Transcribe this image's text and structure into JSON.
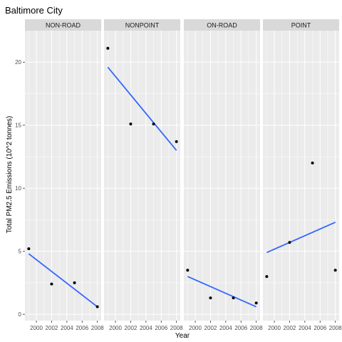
{
  "chart_data": {
    "type": "scatter",
    "title": "Baltimore City",
    "xlabel": "Year",
    "ylabel": "Total PM2.5 Emissions (10^2 tonnes)",
    "x_ticks": [
      2000,
      2002,
      2004,
      2006,
      2008
    ],
    "x_tick_labels": [
      "2000",
      "2002",
      "2004",
      "2006",
      "2008"
    ],
    "y_ticks": [
      0,
      5,
      10,
      15,
      20
    ],
    "y_tick_labels": [
      "0",
      "5",
      "10",
      "15",
      "20"
    ],
    "xlim": [
      1998.5,
      2008.5
    ],
    "ylim": [
      -0.5,
      22.5
    ],
    "grid": true,
    "trend_color": "#3366ff",
    "point_color": "#000000",
    "panel_bg": "#ebebeb",
    "strip_bg": "#d9d9d9",
    "facets": [
      {
        "name": "NON-ROAD",
        "points": [
          {
            "x": 1999,
            "y": 5.2
          },
          {
            "x": 2002,
            "y": 2.4
          },
          {
            "x": 2005,
            "y": 2.5
          },
          {
            "x": 2008,
            "y": 0.6
          }
        ],
        "trend": [
          {
            "x": 1999,
            "y": 4.8
          },
          {
            "x": 2008,
            "y": 0.6
          }
        ]
      },
      {
        "name": "NONPOINT",
        "points": [
          {
            "x": 1999,
            "y": 21.1
          },
          {
            "x": 2002,
            "y": 15.1
          },
          {
            "x": 2005,
            "y": 15.1
          },
          {
            "x": 2008,
            "y": 13.7
          }
        ],
        "trend": [
          {
            "x": 1999,
            "y": 19.6
          },
          {
            "x": 2008,
            "y": 13.0
          }
        ]
      },
      {
        "name": "ON-ROAD",
        "points": [
          {
            "x": 1999,
            "y": 3.5
          },
          {
            "x": 2002,
            "y": 1.3
          },
          {
            "x": 2005,
            "y": 1.3
          },
          {
            "x": 2008,
            "y": 0.9
          }
        ],
        "trend": [
          {
            "x": 1999,
            "y": 3.0
          },
          {
            "x": 2008,
            "y": 0.6
          }
        ]
      },
      {
        "name": "POINT",
        "points": [
          {
            "x": 1999,
            "y": 3.0
          },
          {
            "x": 2002,
            "y": 5.7
          },
          {
            "x": 2005,
            "y": 12.0
          },
          {
            "x": 2008,
            "y": 3.5
          }
        ],
        "trend": [
          {
            "x": 1999,
            "y": 4.9
          },
          {
            "x": 2008,
            "y": 7.3
          }
        ]
      }
    ]
  }
}
